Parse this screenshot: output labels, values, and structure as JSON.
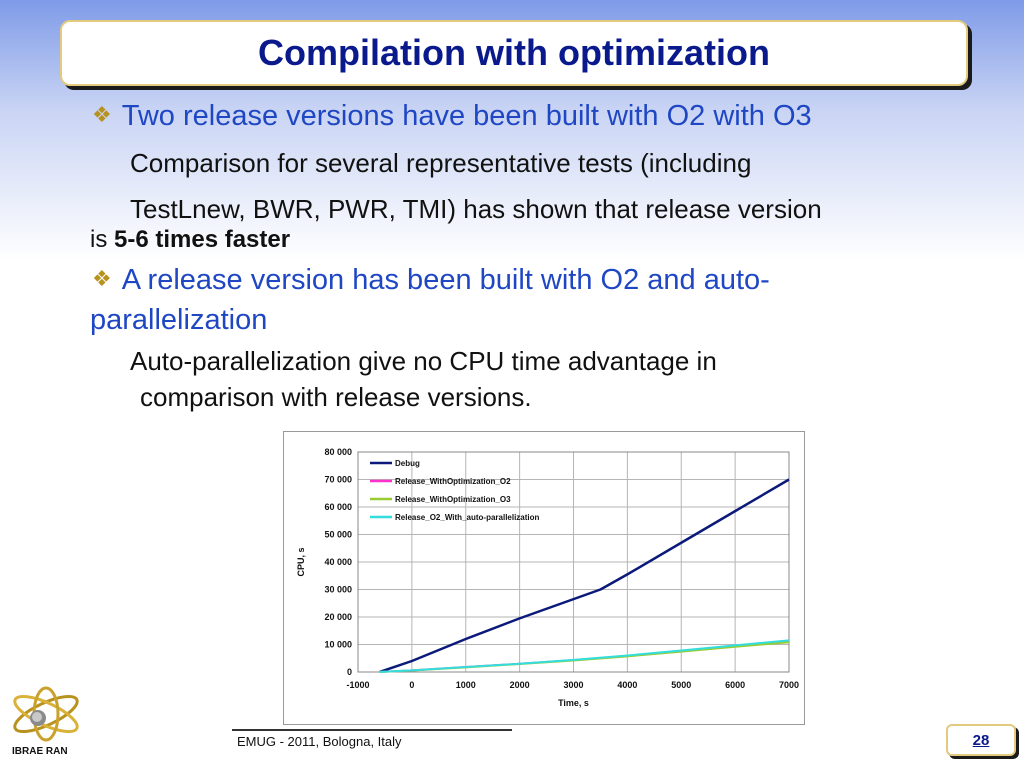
{
  "slide": {
    "title": "Compilation with optimization",
    "bullet1": "Two release versions have been built with O2 with O3",
    "text1_line1": "Comparison for several representative tests (including",
    "text1_line2": "TestLnew, BWR, PWR, TMI) has shown that release version",
    "text1_line3_prefix": "is ",
    "text1_line3_bold": "5-6 times faster",
    "bullet2_line1": "A release version has been built with O2 and auto-",
    "bullet2_line2": "parallelization",
    "text2_line1": "Auto-parallelization give no CPU time advantage in",
    "text2_line2": "comparison with release versions.",
    "bullet_icon": "diamond-bullet-icon"
  },
  "footer": {
    "text": "EMUG - 2011, Bologna, Italy",
    "page": "28",
    "logo_label": "IBRAE RAN"
  },
  "colors": {
    "title": "#0a1a8c",
    "bullet_text": "#1f47c4",
    "bullet_icon": "#b8921e",
    "frame_border": "#e2ca7e"
  },
  "chart_data": {
    "type": "line",
    "title": "",
    "xlabel": "Time, s",
    "ylabel": "CPU, s",
    "xlim": [
      -1000,
      7000
    ],
    "ylim": [
      0,
      80000
    ],
    "xticks": [
      -1000,
      0,
      1000,
      2000,
      3000,
      4000,
      5000,
      6000,
      7000
    ],
    "xtick_labels": [
      "-1000",
      "0",
      "1000",
      "2000",
      "3000",
      "4000",
      "5000",
      "6000",
      "7000"
    ],
    "yticks": [
      0,
      10000,
      20000,
      30000,
      40000,
      50000,
      60000,
      70000,
      80000
    ],
    "ytick_labels": [
      "0",
      "10 000",
      "20 000",
      "30 000",
      "40 000",
      "50 000",
      "60 000",
      "70 000",
      "80 000"
    ],
    "grid": true,
    "legend_position": "top-left",
    "series": [
      {
        "name": "Debug",
        "color": "#0b1a7a",
        "x": [
          -600,
          0,
          1000,
          2000,
          3000,
          3500,
          4000,
          5000,
          6000,
          7000
        ],
        "y": [
          0,
          4000,
          12000,
          19500,
          26500,
          30000,
          35500,
          47000,
          58500,
          70000
        ]
      },
      {
        "name": "Release_WithOptimization_O2",
        "color": "#ff33cc",
        "x": [
          -600,
          0,
          1000,
          2000,
          3000,
          4000,
          5000,
          6000,
          7000
        ],
        "y": [
          0,
          600,
          1800,
          3000,
          4300,
          5800,
          7500,
          9300,
          11000
        ]
      },
      {
        "name": "Release_WithOptimization_O3",
        "color": "#99cc33",
        "x": [
          -600,
          0,
          1000,
          2000,
          3000,
          4000,
          5000,
          6000,
          7000
        ],
        "y": [
          0,
          550,
          1700,
          2900,
          4200,
          5700,
          7400,
          9200,
          10800
        ]
      },
      {
        "name": "Release_O2_With_auto-parallelization",
        "color": "#33dddd",
        "x": [
          -600,
          0,
          1000,
          2000,
          3000,
          4000,
          5000,
          6000,
          7000
        ],
        "y": [
          0,
          600,
          1800,
          3000,
          4400,
          6000,
          7800,
          9700,
          11500
        ]
      }
    ]
  }
}
